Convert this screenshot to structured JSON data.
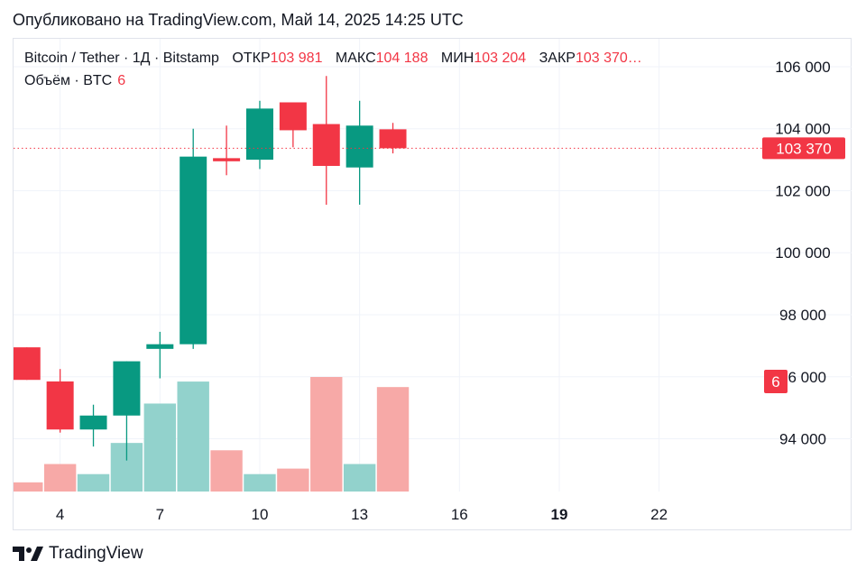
{
  "header": {
    "published": "Опубликовано на TradingView.com, Май 14, 2025 14:25 UTC"
  },
  "legend": {
    "symbol": "Bitcoin / Tether · 1Д · Bitstamp",
    "open_label": "ОТКР",
    "open": "103 981",
    "high_label": "МАКС",
    "high": "104 188",
    "low_label": "МИН",
    "low": "103 204",
    "close_label": "ЗАКР",
    "close": "103 370…",
    "volume_label": "Объём · BTC",
    "volume": "6"
  },
  "brand": {
    "name": "TradingView"
  },
  "colors": {
    "up": "#089981",
    "down": "#f23645",
    "vol_up": "#92d2cc",
    "vol_down": "#f7a9a7",
    "grid": "#f0f3fa",
    "axis_text": "#131722"
  },
  "chart_data": {
    "type": "candlestick",
    "title": "Bitcoin / Tether · 1Д · Bitstamp",
    "y_ticks": [
      "94 000",
      "96 000",
      "98 000",
      "100 000",
      "102 000",
      "104 000",
      "106 000"
    ],
    "y_tick_values": [
      94000,
      96000,
      98000,
      100000,
      102000,
      104000,
      106000
    ],
    "ylim": [
      92300,
      106900
    ],
    "x_ticks": [
      "4",
      "7",
      "10",
      "13",
      "16",
      "19",
      "22"
    ],
    "x_tick_days": [
      4,
      7,
      10,
      13,
      16,
      19,
      22
    ],
    "x_tick_bold": [
      false,
      false,
      false,
      false,
      false,
      true,
      false
    ],
    "xlim": [
      2.6,
      25.1
    ],
    "last_price": 103370,
    "last_price_label": "103 370",
    "last_volume_label": "6",
    "candles": [
      {
        "day": 3,
        "open": 96950,
        "high": 96950,
        "low": 95900,
        "close": 95900
      },
      {
        "day": 4,
        "open": 95850,
        "high": 96250,
        "low": 94200,
        "close": 94300
      },
      {
        "day": 5,
        "open": 94300,
        "high": 95100,
        "low": 93750,
        "close": 94750
      },
      {
        "day": 6,
        "open": 94750,
        "high": 96500,
        "low": 93300,
        "close": 96500
      },
      {
        "day": 7,
        "open": 96900,
        "high": 97450,
        "low": 95950,
        "close": 97050
      },
      {
        "day": 8,
        "open": 97050,
        "high": 104000,
        "low": 96900,
        "close": 103100
      },
      {
        "day": 9,
        "open": 103050,
        "high": 104100,
        "low": 102500,
        "close": 102950
      },
      {
        "day": 10,
        "open": 103000,
        "high": 104900,
        "low": 102700,
        "close": 104650
      },
      {
        "day": 11,
        "open": 104850,
        "high": 104850,
        "low": 103400,
        "close": 103950
      },
      {
        "day": 12,
        "open": 104150,
        "high": 105700,
        "low": 101550,
        "close": 102800
      },
      {
        "day": 13,
        "open": 102750,
        "high": 104900,
        "low": 101550,
        "close": 104100
      },
      {
        "day": 14,
        "open": 103981,
        "high": 104188,
        "low": 103204,
        "close": 103370
      }
    ],
    "volumes": [
      {
        "day": 3,
        "value": 1.0,
        "dir": "down"
      },
      {
        "day": 4,
        "value": 3.0,
        "dir": "down"
      },
      {
        "day": 5,
        "value": 1.9,
        "dir": "up"
      },
      {
        "day": 6,
        "value": 5.3,
        "dir": "up"
      },
      {
        "day": 7,
        "value": 9.6,
        "dir": "up"
      },
      {
        "day": 8,
        "value": 12.0,
        "dir": "up"
      },
      {
        "day": 9,
        "value": 4.5,
        "dir": "down"
      },
      {
        "day": 10,
        "value": 1.9,
        "dir": "up"
      },
      {
        "day": 11,
        "value": 2.5,
        "dir": "down"
      },
      {
        "day": 12,
        "value": 12.5,
        "dir": "down"
      },
      {
        "day": 13,
        "value": 3.0,
        "dir": "up"
      },
      {
        "day": 14,
        "value": 11.4,
        "dir": "down"
      }
    ],
    "volume_max": 12.5
  }
}
